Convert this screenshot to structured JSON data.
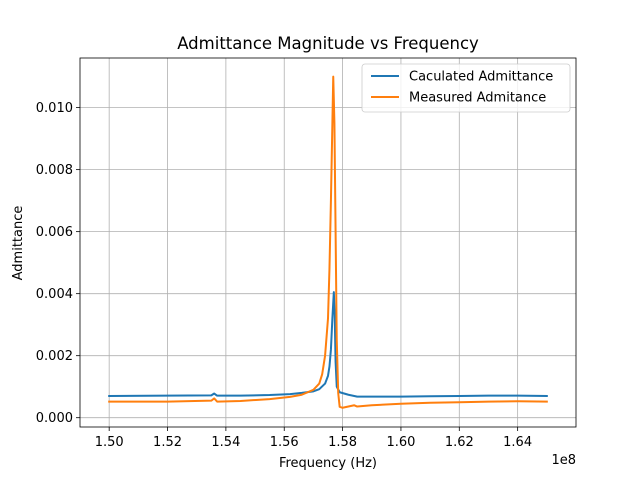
{
  "chart_data": {
    "type": "line",
    "title": "Admittance Magnitude vs Frequency",
    "xlabel": "Frequency (Hz)",
    "ylabel": "Admittance",
    "x_offset_label": "1e8",
    "xlim": [
      149000000.0,
      166000000.0
    ],
    "ylim": [
      -0.0003,
      0.0116
    ],
    "x_ticks": [
      150000000.0,
      152000000.0,
      154000000.0,
      156000000.0,
      158000000.0,
      160000000.0,
      162000000.0,
      164000000.0
    ],
    "x_tick_labels": [
      "1.50",
      "1.52",
      "1.54",
      "1.56",
      "1.58",
      "1.60",
      "1.62",
      "1.64"
    ],
    "y_ticks": [
      0.0,
      0.002,
      0.004,
      0.006,
      0.008,
      0.01
    ],
    "y_tick_labels": [
      "0.000",
      "0.002",
      "0.004",
      "0.006",
      "0.008",
      "0.010"
    ],
    "grid": true,
    "legend_position": "top-right",
    "series": [
      {
        "name": "Caculated Admittance",
        "color": "#1f77b4",
        "points": [
          [
            150000000.0,
            0.0007
          ],
          [
            152000000.0,
            0.00071
          ],
          [
            153500000.0,
            0.00072
          ],
          [
            153600000.0,
            0.00078
          ],
          [
            153700000.0,
            0.00071
          ],
          [
            154500000.0,
            0.00071
          ],
          [
            155500000.0,
            0.00073
          ],
          [
            156200000.0,
            0.00076
          ],
          [
            156600000.0,
            0.0008
          ],
          [
            157000000.0,
            0.00085
          ],
          [
            157200000.0,
            0.00092
          ],
          [
            157400000.0,
            0.0011
          ],
          [
            157500000.0,
            0.00135
          ],
          [
            157550000.0,
            0.00165
          ],
          [
            157600000.0,
            0.0022
          ],
          [
            157650000.0,
            0.0032
          ],
          [
            157700000.0,
            0.00405
          ],
          [
            157730000.0,
            0.0033
          ],
          [
            157760000.0,
            0.0018
          ],
          [
            157800000.0,
            0.001
          ],
          [
            157900000.0,
            0.00082
          ],
          [
            158200000.0,
            0.00074
          ],
          [
            158500000.0,
            0.00068
          ],
          [
            159000000.0,
            0.00068
          ],
          [
            160000000.0,
            0.00068
          ],
          [
            161000000.0,
            0.00069
          ],
          [
            162000000.0,
            0.0007
          ],
          [
            163000000.0,
            0.00071
          ],
          [
            164000000.0,
            0.00071
          ],
          [
            165000000.0,
            0.0007
          ]
        ]
      },
      {
        "name": "Measured Admitance",
        "color": "#ff7f0e",
        "points": [
          [
            150000000.0,
            0.00052
          ],
          [
            152000000.0,
            0.00052
          ],
          [
            153500000.0,
            0.00055
          ],
          [
            153600000.0,
            0.00062
          ],
          [
            153700000.0,
            0.00052
          ],
          [
            154500000.0,
            0.00054
          ],
          [
            155500000.0,
            0.0006
          ],
          [
            156200000.0,
            0.00067
          ],
          [
            156600000.0,
            0.00074
          ],
          [
            157000000.0,
            0.0009
          ],
          [
            157200000.0,
            0.0011
          ],
          [
            157300000.0,
            0.0014
          ],
          [
            157400000.0,
            0.002
          ],
          [
            157500000.0,
            0.0032
          ],
          [
            157550000.0,
            0.0048
          ],
          [
            157600000.0,
            0.007
          ],
          [
            157650000.0,
            0.0095
          ],
          [
            157680000.0,
            0.011
          ],
          [
            157720000.0,
            0.0095
          ],
          [
            157760000.0,
            0.006
          ],
          [
            157800000.0,
            0.0025
          ],
          [
            157850000.0,
            0.0008
          ],
          [
            157900000.0,
            0.00035
          ],
          [
            158000000.0,
            0.00032
          ],
          [
            158200000.0,
            0.00036
          ],
          [
            158400000.0,
            0.0004
          ],
          [
            158500000.0,
            0.00036
          ],
          [
            159000000.0,
            0.0004
          ],
          [
            160000000.0,
            0.00045
          ],
          [
            161000000.0,
            0.00048
          ],
          [
            162000000.0,
            0.0005
          ],
          [
            163000000.0,
            0.00052
          ],
          [
            164000000.0,
            0.00053
          ],
          [
            165000000.0,
            0.00052
          ]
        ]
      }
    ]
  }
}
